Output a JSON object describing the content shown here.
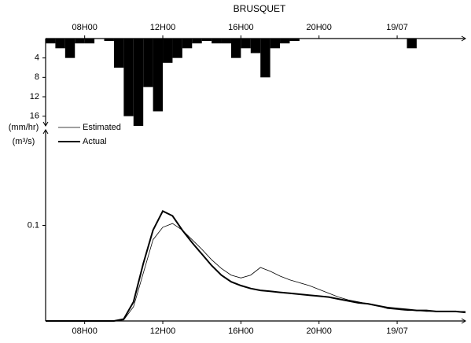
{
  "chart_data": [
    {
      "type": "bar",
      "title": "BRUSQUET",
      "y_label": "(mm/hr)",
      "inverted": true,
      "color": "#000000",
      "x": [
        6,
        6.5,
        7,
        7.5,
        8,
        8.5,
        9,
        9.5,
        10,
        10.5,
        11,
        11.5,
        12,
        12.5,
        13,
        13.5,
        14,
        14.5,
        15,
        15.5,
        16,
        16.5,
        17,
        17.5,
        18,
        18.5,
        19,
        19.5,
        20,
        20.5,
        21,
        21.5,
        22,
        22.5,
        23,
        23.5,
        24,
        24.5,
        25,
        25.5,
        26,
        26.5,
        27
      ],
      "values": [
        1,
        2,
        4,
        1,
        1,
        0,
        0.5,
        6,
        16,
        18,
        10,
        15,
        5,
        4,
        2,
        1,
        0.5,
        1,
        1,
        4,
        2,
        3,
        8,
        2,
        1,
        0.5,
        0,
        0,
        0,
        0,
        0,
        0,
        0,
        0,
        0,
        0,
        0,
        2,
        0,
        0,
        0,
        0,
        0
      ],
      "xlim": [
        6,
        27.5
      ],
      "xticks": [
        {
          "value": 8,
          "label": "08H00"
        },
        {
          "value": 12,
          "label": "12H00"
        },
        {
          "value": 16,
          "label": "16H00"
        },
        {
          "value": 20,
          "label": "20H00"
        },
        {
          "value": 24,
          "label": "19/07"
        }
      ],
      "ylim": [
        0,
        18
      ],
      "yticks": [
        4,
        8,
        12,
        16
      ]
    },
    {
      "type": "line",
      "y_label": "(m³/s)",
      "x": [
        6,
        6.5,
        7,
        7.5,
        8,
        8.5,
        9,
        9.5,
        10,
        10.5,
        11,
        11.5,
        12,
        12.5,
        13,
        13.5,
        14,
        14.5,
        15,
        15.5,
        16,
        16.5,
        17,
        17.5,
        18,
        18.5,
        19,
        19.5,
        20,
        20.5,
        21,
        21.5,
        22,
        22.5,
        23,
        23.5,
        24,
        24.5,
        25,
        25.5,
        26,
        26.5,
        27,
        27.5
      ],
      "series": [
        {
          "name": "Estimated",
          "color": "#000000",
          "line_width": 0.8,
          "values": [
            0,
            0,
            0,
            0,
            0,
            0,
            0,
            0,
            0.001,
            0.015,
            0.05,
            0.085,
            0.098,
            0.102,
            0.095,
            0.085,
            0.075,
            0.064,
            0.055,
            0.048,
            0.045,
            0.048,
            0.056,
            0.052,
            0.047,
            0.043,
            0.04,
            0.037,
            0.033,
            0.029,
            0.025,
            0.022,
            0.02,
            0.018,
            0.016,
            0.013,
            0.012,
            0.011,
            0.011,
            0.01,
            0.01,
            0.01,
            0.01,
            0.01
          ]
        },
        {
          "name": "Actual",
          "color": "#000000",
          "line_width": 2,
          "values": [
            0,
            0,
            0,
            0,
            0,
            0,
            0,
            0,
            0.002,
            0.02,
            0.06,
            0.095,
            0.115,
            0.11,
            0.095,
            0.082,
            0.07,
            0.058,
            0.048,
            0.041,
            0.037,
            0.034,
            0.032,
            0.031,
            0.03,
            0.029,
            0.028,
            0.027,
            0.026,
            0.025,
            0.023,
            0.021,
            0.019,
            0.018,
            0.016,
            0.014,
            0.013,
            0.012,
            0.011,
            0.011,
            0.01,
            0.01,
            0.01,
            0.009
          ]
        }
      ],
      "xlim": [
        6,
        27.5
      ],
      "xticks": [
        {
          "value": 8,
          "label": "08H00"
        },
        {
          "value": 12,
          "label": "12H00"
        },
        {
          "value": 16,
          "label": "16H00"
        },
        {
          "value": 20,
          "label": "20H00"
        },
        {
          "value": 24,
          "label": "19/07"
        }
      ],
      "ylim": [
        0,
        0.2
      ],
      "yticks": [
        0.1
      ]
    }
  ]
}
